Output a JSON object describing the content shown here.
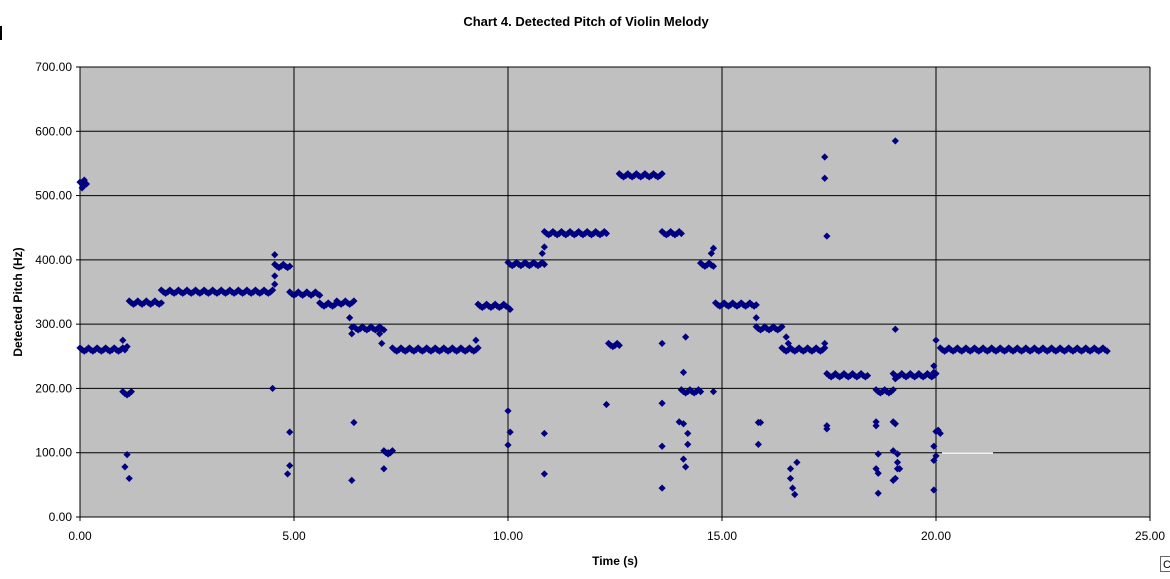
{
  "chart_data": {
    "type": "scatter",
    "title": "Chart 4. Detected Pitch of Violin Melody",
    "xlabel": "Time (s)",
    "ylabel": "Detected Pitch (Hz)",
    "xlim": [
      0,
      25
    ],
    "ylim": [
      0,
      700
    ],
    "xticks": [
      "0.00",
      "5.00",
      "10.00",
      "15.00",
      "20.00",
      "25.00"
    ],
    "yticks": [
      "0.00",
      "100.00",
      "200.00",
      "300.00",
      "400.00",
      "500.00",
      "600.00",
      "700.00"
    ],
    "vertical_gridlines": [
      5,
      10,
      15,
      20
    ],
    "horizontal_gridlines": [
      100,
      200,
      300,
      400,
      500,
      600
    ],
    "plot_background": "#c0c0c0",
    "marker_color": "#000080",
    "marker": "diamond",
    "series": [
      {
        "name": "Detected Pitch",
        "segments": [
          {
            "t0": 0.0,
            "t1": 0.15,
            "hz": 518
          },
          {
            "t0": 0.0,
            "t1": 1.05,
            "hz": 260
          },
          {
            "t0": 1.0,
            "t1": 1.2,
            "hz": 192
          },
          {
            "t0": 1.15,
            "t1": 1.9,
            "hz": 333
          },
          {
            "t0": 1.9,
            "t1": 4.5,
            "hz": 350
          },
          {
            "t0": 4.55,
            "t1": 4.9,
            "hz": 390
          },
          {
            "t0": 4.9,
            "t1": 5.6,
            "hz": 347
          },
          {
            "t0": 5.6,
            "t1": 6.0,
            "hz": 330
          },
          {
            "t0": 6.0,
            "t1": 6.4,
            "hz": 333
          },
          {
            "t0": 6.4,
            "t1": 7.1,
            "hz": 293
          },
          {
            "t0": 7.1,
            "t1": 7.3,
            "hz": 100
          },
          {
            "t0": 7.3,
            "t1": 9.3,
            "hz": 260
          },
          {
            "t0": 9.3,
            "t1": 10.0,
            "hz": 328
          },
          {
            "t0": 10.0,
            "t1": 10.85,
            "hz": 393
          },
          {
            "t0": 10.85,
            "t1": 12.3,
            "hz": 441
          },
          {
            "t0": 12.35,
            "t1": 12.6,
            "hz": 267
          },
          {
            "t0": 12.6,
            "t1": 13.6,
            "hz": 531
          },
          {
            "t0": 13.6,
            "t1": 14.05,
            "hz": 441
          },
          {
            "t0": 14.05,
            "t1": 14.5,
            "hz": 195
          },
          {
            "t0": 14.5,
            "t1": 14.8,
            "hz": 392
          },
          {
            "t0": 14.85,
            "t1": 15.8,
            "hz": 330
          },
          {
            "t0": 15.8,
            "t1": 16.4,
            "hz": 293
          },
          {
            "t0": 16.4,
            "t1": 17.4,
            "hz": 260
          },
          {
            "t0": 17.45,
            "t1": 18.4,
            "hz": 220
          },
          {
            "t0": 18.6,
            "t1": 19.0,
            "hz": 195
          },
          {
            "t0": 19.0,
            "t1": 20.0,
            "hz": 220
          },
          {
            "t0": 20.1,
            "t1": 24.0,
            "hz": 260
          }
        ],
        "points": [
          [
            0.05,
            512
          ],
          [
            0.1,
            524
          ],
          [
            1.0,
            275
          ],
          [
            1.1,
            265
          ],
          [
            1.05,
            78
          ],
          [
            1.1,
            97
          ],
          [
            1.15,
            60
          ],
          [
            4.5,
            200
          ],
          [
            4.55,
            408
          ],
          [
            4.55,
            375
          ],
          [
            4.55,
            362
          ],
          [
            4.9,
            132
          ],
          [
            4.9,
            80
          ],
          [
            4.85,
            67
          ],
          [
            6.3,
            310
          ],
          [
            6.35,
            295
          ],
          [
            6.35,
            285
          ],
          [
            6.4,
            147
          ],
          [
            6.35,
            57
          ],
          [
            7.0,
            285
          ],
          [
            7.05,
            270
          ],
          [
            7.1,
            75
          ],
          [
            7.2,
            100
          ],
          [
            9.25,
            275
          ],
          [
            10.0,
            165
          ],
          [
            10.05,
            132
          ],
          [
            10.0,
            112
          ],
          [
            10.05,
            323
          ],
          [
            10.8,
            410
          ],
          [
            10.85,
            420
          ],
          [
            10.85,
            130
          ],
          [
            10.85,
            67
          ],
          [
            12.3,
            175
          ],
          [
            13.6,
            270
          ],
          [
            13.6,
            177
          ],
          [
            13.6,
            110
          ],
          [
            13.6,
            45
          ],
          [
            14.0,
            148
          ],
          [
            14.1,
            145
          ],
          [
            14.15,
            280
          ],
          [
            14.1,
            225
          ],
          [
            14.1,
            90
          ],
          [
            14.15,
            78
          ],
          [
            14.2,
            130
          ],
          [
            14.2,
            113
          ],
          [
            14.75,
            410
          ],
          [
            14.8,
            418
          ],
          [
            14.8,
            195
          ],
          [
            15.85,
            147
          ],
          [
            15.9,
            147
          ],
          [
            15.85,
            113
          ],
          [
            15.8,
            310
          ],
          [
            16.5,
            280
          ],
          [
            16.55,
            270
          ],
          [
            16.6,
            75
          ],
          [
            16.6,
            60
          ],
          [
            16.65,
            45
          ],
          [
            16.7,
            35
          ],
          [
            16.75,
            85
          ],
          [
            17.4,
            560
          ],
          [
            17.4,
            527
          ],
          [
            17.45,
            437
          ],
          [
            17.4,
            270
          ],
          [
            17.45,
            142
          ],
          [
            17.45,
            137
          ],
          [
            18.6,
            148
          ],
          [
            18.6,
            142
          ],
          [
            18.65,
            98
          ],
          [
            18.6,
            75
          ],
          [
            18.65,
            68
          ],
          [
            18.65,
            37
          ],
          [
            19.05,
            585
          ],
          [
            19.05,
            292
          ],
          [
            19.05,
            215
          ],
          [
            19.0,
            148
          ],
          [
            19.05,
            145
          ],
          [
            19.0,
            103
          ],
          [
            19.1,
            98
          ],
          [
            19.1,
            85
          ],
          [
            19.1,
            75
          ],
          [
            19.15,
            75
          ],
          [
            19.05,
            60
          ],
          [
            19.0,
            57
          ],
          [
            19.95,
            235
          ],
          [
            19.95,
            225
          ],
          [
            20.0,
            275
          ],
          [
            20.0,
            133
          ],
          [
            20.05,
            135
          ],
          [
            20.1,
            130
          ],
          [
            19.95,
            110
          ],
          [
            20.0,
            95
          ],
          [
            19.95,
            88
          ],
          [
            19.95,
            42
          ]
        ]
      }
    ]
  }
}
